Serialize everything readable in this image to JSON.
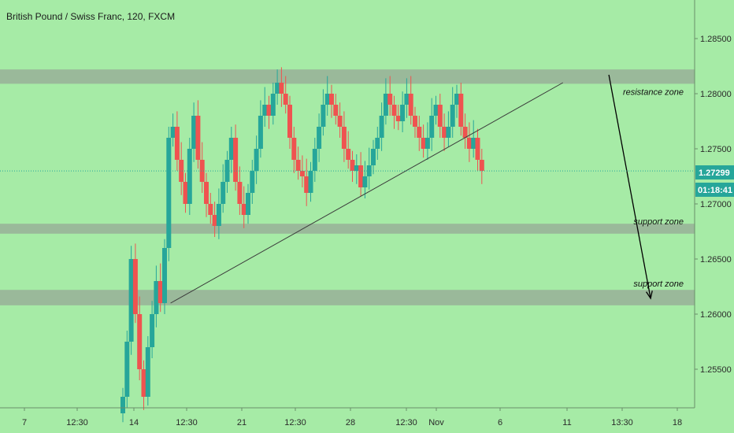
{
  "chart_data": {
    "type": "candlestick",
    "title": "British Pound / Swiss Franc, 120, FXCM",
    "symbol": "British Pound / Swiss Franc",
    "timeframe": "120",
    "source": "FXCM",
    "current_price": "1.27299",
    "countdown": "01:18:41",
    "ylim": [
      1.2515,
      1.2885
    ],
    "y_ticks": [
      {
        "label": "1.28500",
        "value": 1.285
      },
      {
        "label": "1.28000",
        "value": 1.28
      },
      {
        "label": "1.27500",
        "value": 1.275
      },
      {
        "label": "1.27000",
        "value": 1.27
      },
      {
        "label": "1.26500",
        "value": 1.265
      },
      {
        "label": "1.26000",
        "value": 1.26
      },
      {
        "label": "1.25500",
        "value": 1.255
      }
    ],
    "x_ticks": [
      "7",
      "12:30",
      "14",
      "12:30",
      "21",
      "12:30",
      "28",
      "12:30",
      "Nov",
      "6",
      "11",
      "13:30",
      "18"
    ],
    "zones": [
      {
        "label": "resistance zone",
        "low": 1.2809,
        "high": 1.2822
      },
      {
        "label": "support zone",
        "low": 1.2673,
        "high": 1.2682
      },
      {
        "label": "support zone",
        "low": 1.2608,
        "high": 1.2622
      }
    ],
    "candles_close": [
      1.2525,
      1.2575,
      1.265,
      1.26,
      1.255,
      1.2525,
      1.257,
      1.26,
      1.263,
      1.261,
      1.266,
      1.276,
      1.277,
      1.274,
      1.272,
      1.27,
      1.275,
      1.278,
      1.274,
      1.272,
      1.27,
      1.269,
      1.268,
      1.27,
      1.272,
      1.274,
      1.276,
      1.272,
      1.27,
      1.269,
      1.271,
      1.273,
      1.275,
      1.278,
      1.279,
      1.278,
      1.28,
      1.281,
      1.28,
      1.279,
      1.276,
      1.274,
      1.273,
      1.2725,
      1.271,
      1.273,
      1.275,
      1.277,
      1.279,
      1.28,
      1.279,
      1.278,
      1.277,
      1.275,
      1.274,
      1.273,
      1.2735,
      1.2715,
      1.2725,
      1.2735,
      1.275,
      1.276,
      1.278,
      1.28,
      1.279,
      1.278,
      1.2775,
      1.279,
      1.28,
      1.278,
      1.277,
      1.276,
      1.275,
      1.276,
      1.278,
      1.279,
      1.277,
      1.276,
      1.277,
      1.279,
      1.28,
      1.277,
      1.276,
      1.275,
      1.276,
      1.274,
      1.273
    ],
    "trendline": {
      "from": {
        "bar": 12,
        "price": 1.261
      },
      "to": {
        "bar": 106,
        "price": 1.281
      }
    },
    "projection_arrow": {
      "from": {
        "bar": 117,
        "price": 1.281
      },
      "to": {
        "bar": 127,
        "price": 1.262
      }
    },
    "colors": {
      "background": "#a6eba6",
      "up_candle": "#26a69a",
      "down_candle": "#ef5350",
      "zone_fill": "#8f8f8f",
      "price_tag": "#26a69a",
      "axis_text": "#2a2a2a",
      "trendline": "#3a3a3a"
    }
  }
}
